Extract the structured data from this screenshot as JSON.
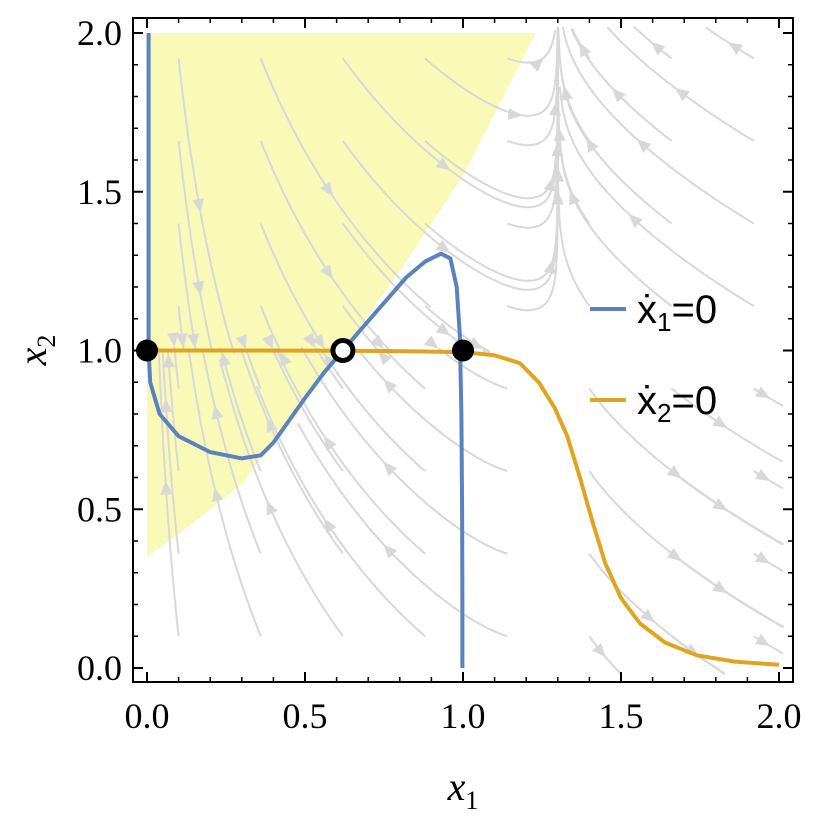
{
  "chart_data": {
    "type": "phase-portrait",
    "xlabel": "x",
    "xlabel_sub": "1",
    "ylabel": "x",
    "ylabel_sub": "2",
    "xlim": [
      0,
      2
    ],
    "ylim": [
      0,
      2
    ],
    "xticks": [
      "0.0",
      "0.5",
      "1.0",
      "1.5",
      "2.0"
    ],
    "yticks": [
      "0.0",
      "0.5",
      "1.0",
      "1.5",
      "2.0"
    ],
    "legend_position": "right",
    "colors": {
      "nullcline1": "#5b82bf",
      "nullcline2": "#e0a520",
      "basin": "#fafab8",
      "stream": "#d8d8d8"
    },
    "series": [
      {
        "name": "ẋ",
        "sub": "1",
        "rhs": "=0",
        "color": "#5b82bf",
        "branches": [
          [
            [
              0.005,
              2.0
            ],
            [
              0.005,
              1.6
            ],
            [
              0.005,
              1.2
            ],
            [
              0.005,
              1.0
            ],
            [
              0.01,
              0.9
            ],
            [
              0.04,
              0.8
            ],
            [
              0.1,
              0.73
            ],
            [
              0.2,
              0.68
            ],
            [
              0.3,
              0.66
            ],
            [
              0.36,
              0.67
            ],
            [
              0.4,
              0.71
            ],
            [
              0.45,
              0.78
            ],
            [
              0.5,
              0.85
            ],
            [
              0.56,
              0.93
            ],
            [
              0.62,
              1.0
            ],
            [
              0.68,
              1.07
            ],
            [
              0.75,
              1.15
            ],
            [
              0.82,
              1.23
            ],
            [
              0.88,
              1.28
            ],
            [
              0.93,
              1.305
            ],
            [
              0.96,
              1.29
            ],
            [
              0.98,
              1.2
            ],
            [
              0.99,
              1.05
            ],
            [
              0.995,
              0.8
            ],
            [
              0.997,
              0.5
            ],
            [
              0.998,
              0.2
            ],
            [
              0.998,
              0.0
            ]
          ]
        ]
      },
      {
        "name": "ẋ",
        "sub": "2",
        "rhs": "=0",
        "color": "#e0a520",
        "points": [
          [
            0,
            1.0
          ],
          [
            0.3,
            1.0
          ],
          [
            0.6,
            0.999
          ],
          [
            0.8,
            0.998
          ],
          [
            1.0,
            0.995
          ],
          [
            1.1,
            0.985
          ],
          [
            1.18,
            0.96
          ],
          [
            1.24,
            0.9
          ],
          [
            1.29,
            0.82
          ],
          [
            1.33,
            0.73
          ],
          [
            1.37,
            0.6
          ],
          [
            1.41,
            0.46
          ],
          [
            1.45,
            0.33
          ],
          [
            1.5,
            0.22
          ],
          [
            1.56,
            0.14
          ],
          [
            1.64,
            0.08
          ],
          [
            1.74,
            0.04
          ],
          [
            1.86,
            0.02
          ],
          [
            2.0,
            0.01
          ]
        ]
      }
    ],
    "basin_region": [
      [
        0,
        2.0
      ],
      [
        1.23,
        2.0
      ],
      [
        1.0,
        1.55
      ],
      [
        0.8,
        1.25
      ],
      [
        0.62,
        1.0
      ],
      [
        0.45,
        0.78
      ],
      [
        0.3,
        0.58
      ],
      [
        0.15,
        0.46
      ],
      [
        0,
        0.35
      ]
    ],
    "equilibria": [
      {
        "x": 0.0,
        "y": 1.0,
        "stable": true
      },
      {
        "x": 0.62,
        "y": 1.0,
        "stable": false
      },
      {
        "x": 1.0,
        "y": 1.0,
        "stable": true
      }
    ]
  }
}
